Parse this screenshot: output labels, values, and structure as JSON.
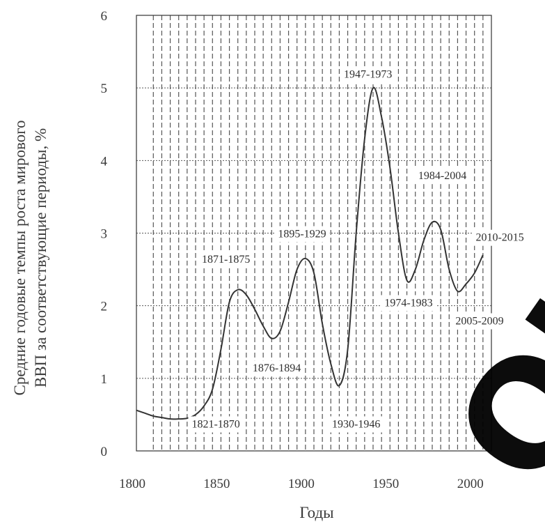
{
  "chart_data": {
    "type": "line",
    "title": "",
    "xlabel": "Годы",
    "ylabel": [
      "Средние годовые темпы роста мирового",
      "ВВП за соответствующие периоды, %"
    ],
    "xlim": [
      1800,
      2010
    ],
    "ylim": [
      0,
      6
    ],
    "xticks": [
      "1800",
      "1850",
      "1900",
      "1950",
      "2000"
    ],
    "yticks": [
      "0",
      "1",
      "2",
      "3",
      "4",
      "5",
      "6"
    ],
    "grid": true,
    "series": [
      {
        "x": [
          1800,
          1805,
          1810,
          1815,
          1820,
          1825,
          1830,
          1835,
          1840,
          1845,
          1850,
          1855,
          1860,
          1865,
          1870,
          1875,
          1880,
          1885,
          1890,
          1895,
          1900,
          1905,
          1910,
          1915,
          1920,
          1925,
          1930,
          1935,
          1940,
          1945,
          1950,
          1955,
          1960,
          1965,
          1970,
          1975,
          1980,
          1985,
          1990,
          1995,
          2000,
          2005
        ],
        "y": [
          0.56,
          0.52,
          0.48,
          0.46,
          0.44,
          0.44,
          0.45,
          0.5,
          0.62,
          0.85,
          1.4,
          2.05,
          2.22,
          2.15,
          1.95,
          1.72,
          1.55,
          1.65,
          2.05,
          2.5,
          2.65,
          2.45,
          1.75,
          1.2,
          0.9,
          1.4,
          3.0,
          4.3,
          5.0,
          4.6,
          3.9,
          3.0,
          2.35,
          2.5,
          2.9,
          3.15,
          3.05,
          2.5,
          2.2,
          2.3,
          2.45,
          2.7
        ]
      }
    ],
    "annotations": [
      {
        "text": "1821-1870",
        "x": 1847,
        "y": 0.38
      },
      {
        "text": "1871-1875",
        "x": 1853,
        "y": 2.65
      },
      {
        "text": "1876-1894",
        "x": 1883,
        "y": 1.15
      },
      {
        "text": "1895-1929",
        "x": 1898,
        "y": 3.0
      },
      {
        "text": "1930-1946",
        "x": 1930,
        "y": 0.38
      },
      {
        "text": "1947-1973",
        "x": 1937,
        "y": 5.2
      },
      {
        "text": "1974-1983",
        "x": 1961,
        "y": 2.05
      },
      {
        "text": "1984-2004",
        "x": 1981,
        "y": 3.8
      },
      {
        "text": "2005-2009",
        "x": 2003,
        "y": 1.8
      },
      {
        "text": "2010-2015",
        "x": 2015,
        "y": 2.95
      }
    ]
  },
  "watermark_text": "ОИЙ Р"
}
